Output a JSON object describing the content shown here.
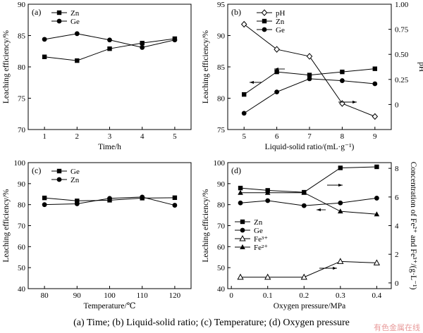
{
  "caption": "(a) Time; (b) Liquid-solid ratio; (c) Temperature; (d) Oxygen pressure",
  "watermark": "有色金属在线",
  "chart_data": [
    {
      "type": "line",
      "panel_label": "(a)",
      "xlabel": "Time/h",
      "ylabel": "Leaching efficiency/%",
      "x": [
        1,
        2,
        3,
        4,
        5
      ],
      "xticks": [
        1,
        2,
        3,
        4,
        5
      ],
      "xlim": [
        0.5,
        5.5
      ],
      "ylim": [
        70,
        90
      ],
      "yticks": [
        70,
        75,
        80,
        85,
        90
      ],
      "legend_position": "top-left",
      "series": [
        {
          "name": "Zn",
          "marker": "square",
          "values": [
            81.6,
            81.0,
            82.9,
            83.8,
            84.5
          ]
        },
        {
          "name": "Ge",
          "marker": "circle",
          "values": [
            84.4,
            85.3,
            84.3,
            83.1,
            84.3
          ]
        }
      ]
    },
    {
      "type": "line",
      "panel_label": "(b)",
      "xlabel": "Liquid-solid ratio/(mL·g⁻¹)",
      "ylabel": "Leaching efficiency/%",
      "y2label": "pH",
      "x": [
        5,
        6,
        7,
        8,
        9
      ],
      "xticks": [
        5,
        6,
        7,
        8,
        9
      ],
      "xlim": [
        4.5,
        9.5
      ],
      "ylim": [
        75,
        95
      ],
      "yticks": [
        75,
        80,
        85,
        90,
        95
      ],
      "y2lim": [
        -0.25,
        1.0
      ],
      "y2ticks": [
        "0",
        "0.25",
        "0.50",
        "0.75",
        "1.00"
      ],
      "legend_position": "top-center",
      "series": [
        {
          "name": "pH",
          "marker": "open-diamond",
          "axis": "right",
          "values": [
            0.8,
            0.55,
            0.48,
            0.01,
            -0.12
          ]
        },
        {
          "name": "Zn",
          "marker": "square",
          "axis": "left",
          "values": [
            80.6,
            84.2,
            83.7,
            84.2,
            84.7
          ]
        },
        {
          "name": "Ge",
          "marker": "circle",
          "axis": "left",
          "values": [
            77.6,
            81.0,
            83.1,
            82.8,
            82.3
          ]
        }
      ]
    },
    {
      "type": "line",
      "panel_label": "(c)",
      "xlabel": "Temperature/℃",
      "ylabel": "Leaching efficiency/%",
      "x": [
        80,
        90,
        100,
        110,
        120
      ],
      "xticks": [
        80,
        90,
        100,
        110,
        120
      ],
      "xlim": [
        75,
        125
      ],
      "ylim": [
        40,
        100
      ],
      "yticks": [
        40,
        50,
        60,
        70,
        80,
        90,
        100
      ],
      "legend_position": "top-left",
      "series": [
        {
          "name": "Ge",
          "marker": "square",
          "values": [
            83.2,
            81.8,
            82.1,
            83.1,
            83.3
          ]
        },
        {
          "name": "Zn",
          "marker": "circle",
          "values": [
            80.0,
            80.4,
            83.0,
            83.6,
            79.7
          ]
        }
      ]
    },
    {
      "type": "line",
      "panel_label": "(d)",
      "xlabel": "Oxygen pressure/MPa",
      "ylabel": "Leaching efficiency/%",
      "y2label": "Concentration of Fe²⁺ and Fe³⁺/(g·L⁻¹)",
      "x": [
        0.025,
        0.1,
        0.2,
        0.3,
        0.4
      ],
      "xticks": [
        "0",
        "0.1",
        "0.2",
        "0.3",
        "0.4"
      ],
      "xlim": [
        -0.01,
        0.44
      ],
      "ylim": [
        40,
        100
      ],
      "yticks": [
        40,
        50,
        60,
        70,
        80,
        90,
        100
      ],
      "y2lim": [
        -0.4,
        8.4
      ],
      "y2ticks": [
        0,
        2,
        4,
        6,
        8
      ],
      "legend_position": "bottom-left",
      "series": [
        {
          "name": "Zn",
          "marker": "square",
          "axis": "left",
          "values": [
            87.9,
            86.8,
            85.9,
            97.5,
            98.0
          ]
        },
        {
          "name": "Ge",
          "marker": "circle",
          "axis": "left",
          "values": [
            80.8,
            81.9,
            79.5,
            80.8,
            83.1
          ]
        },
        {
          "name": "Fe³⁺",
          "marker": "open-triangle",
          "axis": "right",
          "values": [
            0.4,
            0.4,
            0.4,
            1.5,
            1.4
          ]
        },
        {
          "name": "Fe²⁺",
          "marker": "triangle",
          "axis": "right",
          "values": [
            6.3,
            6.3,
            6.3,
            5.0,
            4.8
          ]
        }
      ]
    }
  ]
}
